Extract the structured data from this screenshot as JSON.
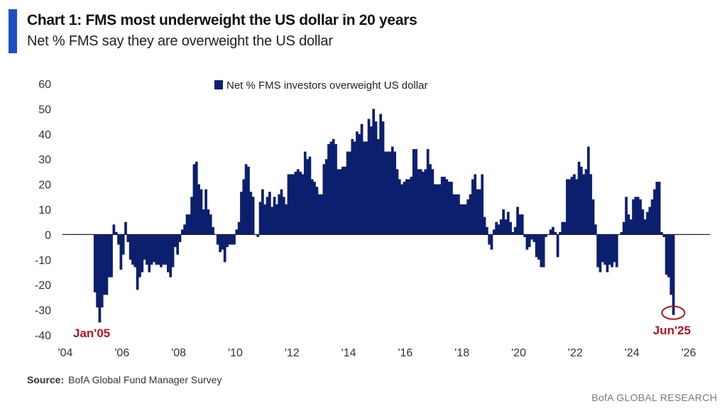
{
  "title": "Chart 1: FMS most underweight the US dollar in 20 years",
  "subtitle": "Net % FMS say they are overweight the US dollar",
  "source_label": "Source:",
  "source_text": "BofA Global Fund Manager Survey",
  "footer": "BofA GLOBAL RESEARCH",
  "colors": {
    "bar": "#0c1f6e",
    "accent": "#1f4fc4",
    "annotation": "#b3141f"
  },
  "chart_data": {
    "type": "bar",
    "title": "Chart 1: FMS most underweight the US dollar in 20 years",
    "legend_position": "top-center",
    "grid": false,
    "series": [
      {
        "name": "Net % FMS investors overweight US dollar",
        "start": "2005-01",
        "frequency": "monthly",
        "values": [
          -23,
          -29,
          -35,
          -29,
          -24,
          -24,
          -17,
          -17,
          4,
          1,
          -4,
          -14,
          -8,
          5,
          -3,
          -10,
          -12,
          -13,
          -22,
          -17,
          -15,
          -10,
          -12,
          -15,
          -12,
          -11,
          -12,
          -12,
          -13,
          -12,
          -12,
          -15,
          -17,
          -13,
          -5,
          -8,
          -3,
          2,
          4,
          8,
          8,
          15,
          28,
          29,
          20,
          18,
          10,
          18,
          10,
          8,
          3,
          0,
          -4,
          -7,
          -6,
          -11,
          -5,
          -4,
          -4,
          -4,
          2,
          5,
          17,
          22,
          28,
          27,
          17,
          15,
          0,
          -1,
          13,
          18,
          12,
          15,
          17,
          11,
          15,
          12,
          16,
          18,
          15,
          12,
          24,
          24,
          24,
          25,
          26,
          25,
          24,
          33,
          30,
          31,
          22,
          21,
          19,
          16,
          16,
          28,
          30,
          36,
          37,
          38,
          36,
          26,
          26,
          27,
          27,
          33,
          33,
          38,
          37,
          41,
          40,
          44,
          37,
          37,
          46,
          43,
          50,
          45,
          38,
          48,
          45,
          33,
          33,
          33,
          35,
          33,
          26,
          22,
          20,
          21,
          22,
          22,
          23,
          34,
          34,
          26,
          26,
          25,
          26,
          34,
          28,
          26,
          20,
          20,
          20,
          23,
          23,
          22,
          21,
          21,
          16,
          16,
          16,
          12,
          12,
          12,
          14,
          16,
          22,
          24,
          18,
          18,
          24,
          7,
          3,
          -4,
          -6,
          2,
          5,
          4,
          6,
          10,
          6,
          9,
          5,
          1,
          3,
          11,
          8,
          8,
          -1,
          -6,
          -5,
          -2,
          -3,
          -9,
          -10,
          -13,
          -13,
          -1,
          0,
          2,
          3,
          1,
          -9,
          1,
          5,
          5,
          22,
          22,
          23,
          24,
          22,
          29,
          27,
          24,
          26,
          35,
          24,
          14,
          4,
          -13,
          -15,
          -11,
          -12,
          -15,
          -12,
          -13,
          -11,
          -13,
          0,
          1,
          5,
          15,
          8,
          6,
          14,
          15,
          15,
          14,
          10,
          6,
          9,
          11,
          14,
          18,
          21,
          21,
          1,
          -1,
          -16,
          -17,
          -24,
          -32
        ]
      }
    ],
    "ylim": [
      -40,
      60
    ],
    "yticks": [
      "60",
      "50",
      "40",
      "30",
      "20",
      "10",
      "0",
      "-10",
      "-20",
      "-30",
      "-40"
    ],
    "xlim": [
      2004,
      2026
    ],
    "xticks": [
      "'04",
      "'06",
      "'08",
      "'10",
      "'12",
      "'14",
      "'16",
      "'18",
      "'20",
      "'22",
      "'24",
      "'26"
    ],
    "annotations": [
      {
        "text": "Jan'05",
        "date": "2005-01"
      },
      {
        "text": "Jun'25",
        "date": "2025-06",
        "circled": true
      }
    ]
  }
}
